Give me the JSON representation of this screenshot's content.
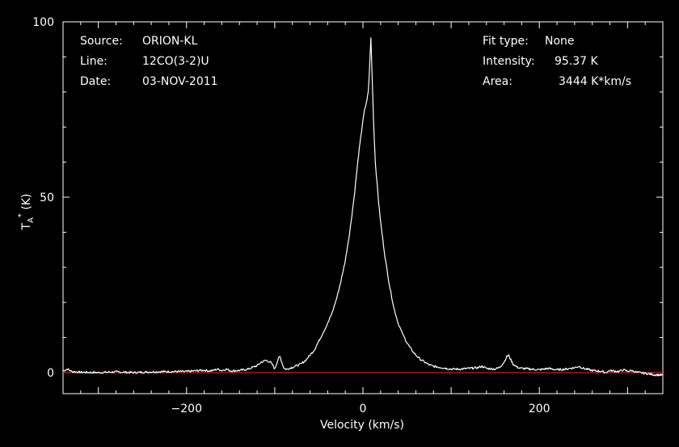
{
  "header": {
    "source_label": "Source:",
    "source_value": "ORION-KL",
    "line_label": "Line:",
    "line_value": "12CO(3-2)U",
    "date_label": "Date:",
    "date_value": "03-NOV-2011",
    "fit_label": "Fit type:",
    "fit_value": "None",
    "intensity_label": "Intensity:",
    "intensity_value": "95.37 K",
    "area_label": "Area:",
    "area_value": "3444 K*km/s"
  },
  "chart_data": {
    "type": "line",
    "xlabel": "Velocity (km/s)",
    "ylabel": "T",
    "ylabel_sub": "A",
    "ylabel_sup": "*",
    "ylabel_unit": " (K)",
    "xlim": [
      -340,
      340
    ],
    "ylim": [
      -6,
      100
    ],
    "xticks": [
      -200,
      0,
      200
    ],
    "yticks": [
      0,
      50,
      100
    ],
    "grid": false,
    "colors": {
      "spectrum": "#ffffff",
      "baseline": "#e02020",
      "axes": "#ffffff"
    },
    "baseline_y": 0,
    "series": [
      {
        "x": [
          -340,
          -335,
          -330,
          -320,
          -300,
          -280,
          -260,
          -240,
          -220,
          -200,
          -190,
          -180,
          -175,
          -170,
          -165,
          -160,
          -155,
          -150,
          -140,
          -130,
          -125,
          -120,
          -115,
          -110,
          -105,
          -102,
          -100,
          -98,
          -96,
          -94,
          -92,
          -90,
          -88,
          -86,
          -84,
          -80,
          -75,
          -70,
          -65,
          -60,
          -55,
          -50,
          -45,
          -40,
          -35,
          -30,
          -25,
          -20,
          -15,
          -10,
          -5,
          0,
          2,
          4,
          6,
          7,
          8,
          9,
          10,
          11,
          12,
          13,
          14,
          16,
          18,
          20,
          25,
          30,
          35,
          40,
          45,
          50,
          55,
          60,
          65,
          70,
          75,
          80,
          90,
          100,
          110,
          120,
          130,
          135,
          140,
          150,
          155,
          160,
          163,
          165,
          167,
          170,
          175,
          180,
          190,
          200,
          210,
          220,
          230,
          240,
          245,
          250,
          260,
          270,
          275,
          280,
          290,
          295,
          300,
          305,
          310,
          320,
          330,
          340
        ],
        "y": [
          0.5,
          1.0,
          0.3,
          0.1,
          0.0,
          0.2,
          0.0,
          0.2,
          0.3,
          0.3,
          0.5,
          0.7,
          0.5,
          0.6,
          1.0,
          0.6,
          1.0,
          0.5,
          0.6,
          1.0,
          1.5,
          2.0,
          3.0,
          3.5,
          3.0,
          2.0,
          1.0,
          2.5,
          4.0,
          4.5,
          3.0,
          1.5,
          1.0,
          1.0,
          1.2,
          1.5,
          2.0,
          2.5,
          3.5,
          5.0,
          6.5,
          9.0,
          11.5,
          14.0,
          17.0,
          21.0,
          26.0,
          32.0,
          40.0,
          50.0,
          62.0,
          72.0,
          75.0,
          77.0,
          80.0,
          84.0,
          90.0,
          95.37,
          88.0,
          80.0,
          72.0,
          66.0,
          60.0,
          54.0,
          48.0,
          43.0,
          33.0,
          25.0,
          18.5,
          14.0,
          11.0,
          8.5,
          6.5,
          5.0,
          3.8,
          3.0,
          2.2,
          1.8,
          1.4,
          1.0,
          1.0,
          1.2,
          1.4,
          1.8,
          1.2,
          1.0,
          1.5,
          3.0,
          4.5,
          5.0,
          4.0,
          2.5,
          1.5,
          1.2,
          1.0,
          0.8,
          1.2,
          0.8,
          1.0,
          1.4,
          1.8,
          1.2,
          0.6,
          0.4,
          0.0,
          0.6,
          0.3,
          0.8,
          0.4,
          0.6,
          0.1,
          -0.2,
          -0.6,
          -0.7
        ]
      }
    ]
  }
}
